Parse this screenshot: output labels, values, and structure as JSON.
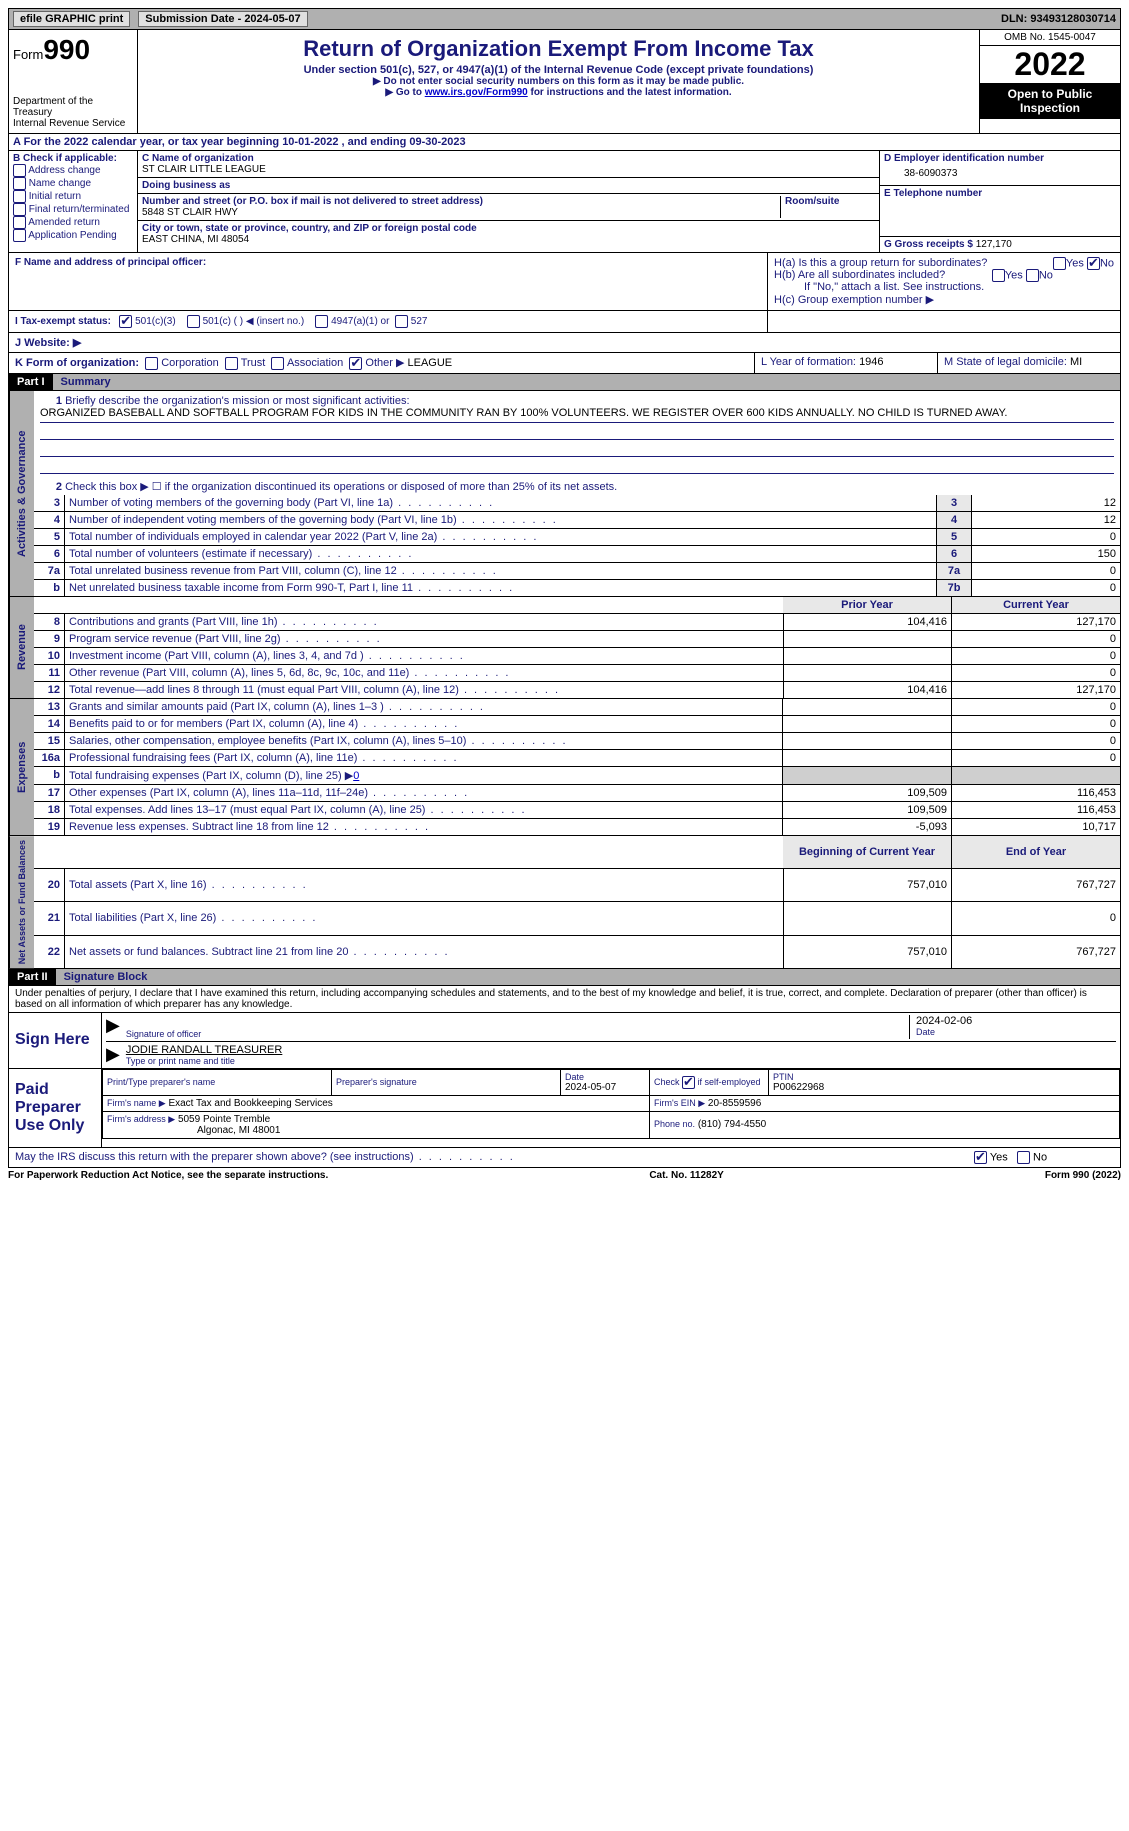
{
  "topbar": {
    "efile": "efile GRAPHIC print",
    "submission": "Submission Date - 2024-05-07",
    "dln_label": "DLN:",
    "dln": "93493128030714"
  },
  "header": {
    "form": "Form",
    "num": "990",
    "dept": "Department of the Treasury",
    "irs": "Internal Revenue Service",
    "title": "Return of Organization Exempt From Income Tax",
    "sub": "Under section 501(c), 527, or 4947(a)(1) of the Internal Revenue Code (except private foundations)",
    "note1": "▶ Do not enter social security numbers on this form as it may be made public.",
    "note2_a": "▶ Go to ",
    "note2_link": "www.irs.gov/Form990",
    "note2_b": " for instructions and the latest information.",
    "omb": "OMB No. 1545-0047",
    "year": "2022",
    "inspect": "Open to Public Inspection"
  },
  "line_a": "A For the 2022 calendar year, or tax year beginning 10-01-2022    , and ending 09-30-2023",
  "box_b": {
    "title": "B Check if applicable:",
    "items": [
      "Address change",
      "Name change",
      "Initial return",
      "Final return/terminated",
      "Amended return",
      "Application Pending"
    ]
  },
  "box_c": {
    "name_lbl": "C Name of organization",
    "name": "ST CLAIR LITTLE LEAGUE",
    "dba_lbl": "Doing business as",
    "dba": "",
    "street_lbl": "Number and street (or P.O. box if mail is not delivered to street address)",
    "room_lbl": "Room/suite",
    "street": "5848 ST CLAIR HWY",
    "city_lbl": "City or town, state or province, country, and ZIP or foreign postal code",
    "city": "EAST CHINA, MI  48054"
  },
  "box_d": {
    "ein_lbl": "D Employer identification number",
    "ein": "38-6090373",
    "tel_lbl": "E Telephone number",
    "tel": "",
    "gross_lbl": "G Gross receipts $",
    "gross": "127,170"
  },
  "f_lbl": "F Name and address of principal officer:",
  "f_val": "",
  "h": {
    "a_lbl": "H(a)  Is this a group return for subordinates?",
    "b_lbl": "H(b)  Are all subordinates included?",
    "b_note": "If \"No,\" attach a list. See instructions.",
    "c_lbl": "H(c)  Group exemption number ▶"
  },
  "i_lbl": "I   Tax-exempt status:",
  "i_opts": [
    "501(c)(3)",
    "501(c) (  ) ◀ (insert no.)",
    "4947(a)(1) or",
    "527"
  ],
  "j_lbl": "J   Website: ▶",
  "j_val": "",
  "k_lbl": "K Form of organization:",
  "k_opts": [
    "Corporation",
    "Trust",
    "Association",
    "Other ▶"
  ],
  "k_other": "LEAGUE",
  "l_lbl": "L Year of formation:",
  "l_val": "1946",
  "m_lbl": "M State of legal domicile:",
  "m_val": "MI",
  "part1": {
    "tag": "Part I",
    "title": "Summary",
    "q1_lbl": "Briefly describe the organization's mission or most significant activities:",
    "q1_val": "ORGANIZED BASEBALL AND SOFTBALL PROGRAM FOR KIDS IN THE COMMUNITY RAN BY 100% VOLUNTEERS. WE REGISTER OVER 600 KIDS ANNUALLY. NO CHILD IS TURNED AWAY.",
    "q2": "Check this box ▶ ☐ if the organization discontinued its operations or disposed of more than 25% of its net assets.",
    "lines_gov": [
      {
        "n": "3",
        "t": "Number of voting members of the governing body (Part VI, line 1a)",
        "box": "3",
        "v": "12"
      },
      {
        "n": "4",
        "t": "Number of independent voting members of the governing body (Part VI, line 1b)",
        "box": "4",
        "v": "12"
      },
      {
        "n": "5",
        "t": "Total number of individuals employed in calendar year 2022 (Part V, line 2a)",
        "box": "5",
        "v": "0"
      },
      {
        "n": "6",
        "t": "Total number of volunteers (estimate if necessary)",
        "box": "6",
        "v": "150"
      },
      {
        "n": "7a",
        "t": "Total unrelated business revenue from Part VIII, column (C), line 12",
        "box": "7a",
        "v": "0"
      },
      {
        "n": "b",
        "t": "Net unrelated business taxable income from Form 990-T, Part I, line 11",
        "box": "7b",
        "v": "0"
      }
    ],
    "col_prior": "Prior Year",
    "col_curr": "Current Year",
    "revenue": [
      {
        "n": "8",
        "t": "Contributions and grants (Part VIII, line 1h)",
        "p": "104,416",
        "c": "127,170"
      },
      {
        "n": "9",
        "t": "Program service revenue (Part VIII, line 2g)",
        "p": "",
        "c": "0"
      },
      {
        "n": "10",
        "t": "Investment income (Part VIII, column (A), lines 3, 4, and 7d )",
        "p": "",
        "c": "0"
      },
      {
        "n": "11",
        "t": "Other revenue (Part VIII, column (A), lines 5, 6d, 8c, 9c, 10c, and 11e)",
        "p": "",
        "c": "0"
      },
      {
        "n": "12",
        "t": "Total revenue—add lines 8 through 11 (must equal Part VIII, column (A), line 12)",
        "p": "104,416",
        "c": "127,170"
      }
    ],
    "expenses": [
      {
        "n": "13",
        "t": "Grants and similar amounts paid (Part IX, column (A), lines 1–3 )",
        "p": "",
        "c": "0"
      },
      {
        "n": "14",
        "t": "Benefits paid to or for members (Part IX, column (A), line 4)",
        "p": "",
        "c": "0"
      },
      {
        "n": "15",
        "t": "Salaries, other compensation, employee benefits (Part IX, column (A), lines 5–10)",
        "p": "",
        "c": "0"
      },
      {
        "n": "16a",
        "t": "Professional fundraising fees (Part IX, column (A), line 11e)",
        "p": "",
        "c": "0"
      }
    ],
    "line16b_a": "Total fundraising expenses (Part IX, column (D), line 25) ▶",
    "line16b_v": "0",
    "expenses2": [
      {
        "n": "17",
        "t": "Other expenses (Part IX, column (A), lines 11a–11d, 11f–24e)",
        "p": "109,509",
        "c": "116,453"
      },
      {
        "n": "18",
        "t": "Total expenses. Add lines 13–17 (must equal Part IX, column (A), line 25)",
        "p": "109,509",
        "c": "116,453"
      },
      {
        "n": "19",
        "t": "Revenue less expenses. Subtract line 18 from line 12",
        "p": "-5,093",
        "c": "10,717"
      }
    ],
    "col_beg": "Beginning of Current Year",
    "col_end": "End of Year",
    "netassets": [
      {
        "n": "20",
        "t": "Total assets (Part X, line 16)",
        "p": "757,010",
        "c": "767,727"
      },
      {
        "n": "21",
        "t": "Total liabilities (Part X, line 26)",
        "p": "",
        "c": "0"
      },
      {
        "n": "22",
        "t": "Net assets or fund balances. Subtract line 21 from line 20",
        "p": "757,010",
        "c": "767,727"
      }
    ],
    "vtab_gov": "Activities & Governance",
    "vtab_rev": "Revenue",
    "vtab_exp": "Expenses",
    "vtab_net": "Net Assets or Fund Balances"
  },
  "part2": {
    "tag": "Part II",
    "title": "Signature Block",
    "decl": "Under penalties of perjury, I declare that I have examined this return, including accompanying schedules and statements, and to the best of my knowledge and belief, it is true, correct, and complete. Declaration of preparer (other than officer) is based on all information of which preparer has any knowledge.",
    "sign_here": "Sign Here",
    "sig_officer": "Signature of officer",
    "sig_date_lbl": "Date",
    "sig_date": "2024-02-06",
    "sig_name": "JODIE RANDALL TREASURER",
    "sig_name_lbl": "Type or print name and title",
    "paid": "Paid Preparer Use Only",
    "prep_name_lbl": "Print/Type preparer's name",
    "prep_name": "",
    "prep_sig_lbl": "Preparer's signature",
    "prep_date_lbl": "Date",
    "prep_date": "2024-05-07",
    "prep_se_lbl": "Check ☑ if self-employed",
    "ptin_lbl": "PTIN",
    "ptin": "P00622968",
    "firm_name_lbl": "Firm's name  ▶",
    "firm_name": "Exact Tax and Bookkeeping Services",
    "firm_ein_lbl": "Firm's EIN ▶",
    "firm_ein": "20-8559596",
    "firm_addr_lbl": "Firm's address ▶",
    "firm_addr1": "5059 Pointe Tremble",
    "firm_addr2": "Algonac, MI  48001",
    "firm_phone_lbl": "Phone no.",
    "firm_phone": "(810) 794-4550",
    "discuss": "May the IRS discuss this return with the preparer shown above? (see instructions)"
  },
  "footer": {
    "l": "For Paperwork Reduction Act Notice, see the separate instructions.",
    "m": "Cat. No. 11282Y",
    "r": "Form 990 (2022)"
  },
  "yn": {
    "yes": "Yes",
    "no": "No"
  }
}
